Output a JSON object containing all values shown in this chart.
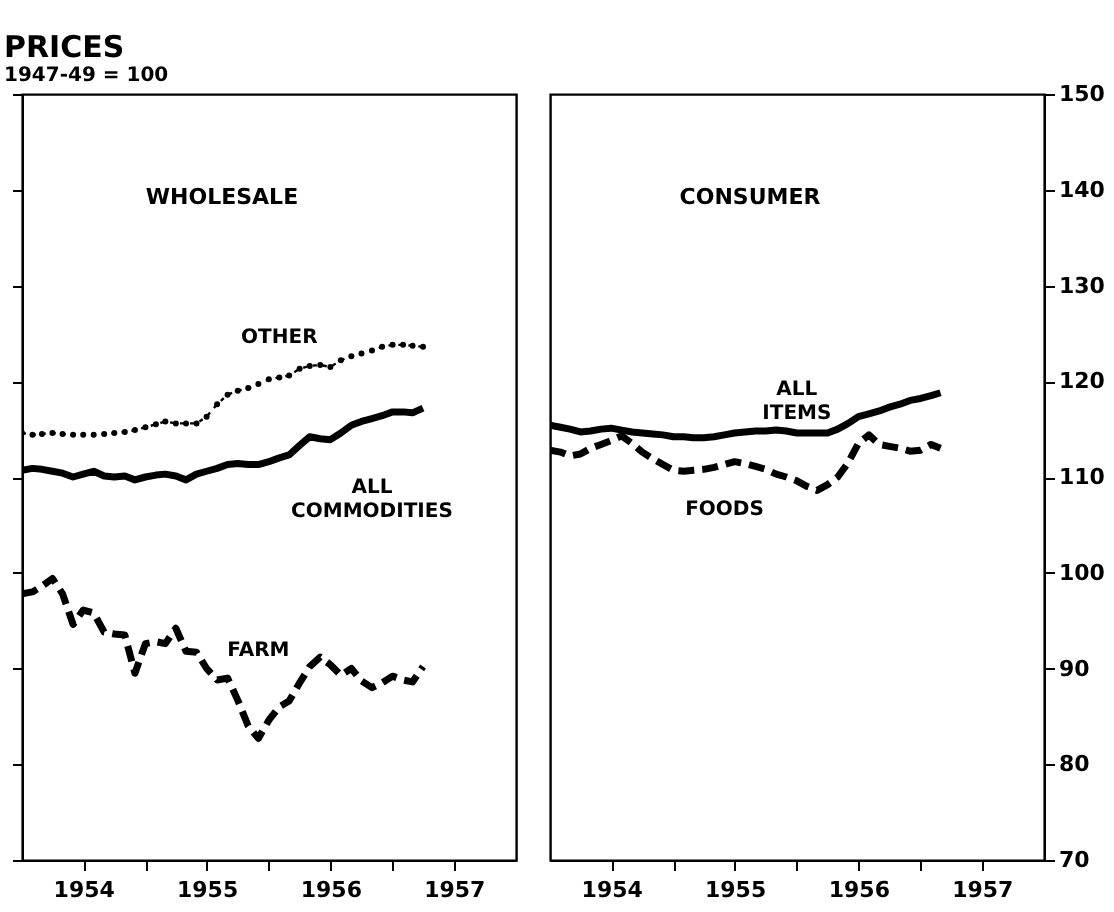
{
  "chart_data": [
    {
      "type": "line",
      "title": "PRICES",
      "subtitle": "1947-49 = 100",
      "annotations": [
        "WHOLESALE"
      ],
      "x": [
        "1954-01",
        "1954-02",
        "1954-03",
        "1954-04",
        "1954-05",
        "1954-06",
        "1954-07",
        "1954-08",
        "1954-09",
        "1954-10",
        "1954-11",
        "1954-12",
        "1955-01",
        "1955-02",
        "1955-03",
        "1955-04",
        "1955-05",
        "1955-06",
        "1955-07",
        "1955-08",
        "1955-09",
        "1955-10",
        "1955-11",
        "1955-12",
        "1956-01",
        "1956-02",
        "1956-03",
        "1956-04",
        "1956-05",
        "1956-06",
        "1956-07",
        "1956-08",
        "1956-09",
        "1956-10",
        "1956-11",
        "1956-12",
        "1957-01",
        "1957-02",
        "1957-03",
        "1957-04"
      ],
      "series": [
        {
          "name": "OTHER",
          "color": "#000000",
          "line_style": "dotted",
          "marker": "circle",
          "values": [
            114.6,
            114.4,
            114.5,
            114.6,
            114.5,
            114.4,
            114.4,
            114.4,
            114.5,
            114.6,
            114.7,
            114.9,
            115.2,
            115.5,
            115.8,
            115.6,
            115.6,
            115.6,
            116.3,
            117.6,
            118.6,
            119.0,
            119.3,
            119.7,
            120.2,
            120.4,
            120.6,
            121.3,
            121.6,
            121.7,
            121.5,
            122.2,
            122.6,
            122.9,
            123.2,
            123.6,
            123.8,
            123.8,
            123.7,
            123.6
          ]
        },
        {
          "name": "ALL COMMODITIES",
          "color": "#000000",
          "line_style": "solid",
          "values": [
            110.7,
            110.9,
            110.8,
            110.6,
            110.4,
            110.0,
            110.3,
            110.6,
            110.1,
            110.0,
            110.1,
            109.7,
            110.0,
            110.2,
            110.3,
            110.1,
            109.7,
            110.3,
            110.6,
            110.9,
            111.3,
            111.4,
            111.3,
            111.3,
            111.6,
            112.0,
            112.3,
            113.3,
            114.2,
            114.0,
            113.9,
            114.6,
            115.4,
            115.8,
            116.1,
            116.4,
            116.8,
            116.8,
            116.7,
            117.2
          ]
        },
        {
          "name": "FARM",
          "color": "#000000",
          "line_style": "dashed",
          "values": [
            97.8,
            98.0,
            98.6,
            99.4,
            97.8,
            94.6,
            96.1,
            95.8,
            93.8,
            93.6,
            93.5,
            89.5,
            92.6,
            92.8,
            92.6,
            94.2,
            91.8,
            91.7,
            90.0,
            88.8,
            89.0,
            86.7,
            84.0,
            82.7,
            84.6,
            86.0,
            86.6,
            88.5,
            90.2,
            91.2,
            90.4,
            89.3,
            90.0,
            88.7,
            88.0,
            88.5,
            89.2,
            88.8,
            88.6,
            90.2
          ]
        }
      ],
      "xlim": [
        "1954-01",
        "1958-01"
      ],
      "xticks": [
        {
          "value": "1954-07",
          "label": "1954"
        },
        {
          "value": "1955-01",
          "label": null
        },
        {
          "value": "1955-07",
          "label": "1955"
        },
        {
          "value": "1956-01",
          "label": null
        },
        {
          "value": "1956-07",
          "label": "1956"
        },
        {
          "value": "1957-01",
          "label": null
        },
        {
          "value": "1957-07",
          "label": "1957"
        }
      ],
      "ylim": [
        70,
        150
      ],
      "yticks": [
        70,
        80,
        90,
        100,
        110,
        120,
        130,
        140,
        150
      ],
      "tick_labels": "x",
      "grid": false
    },
    {
      "type": "line",
      "annotations": [
        "CONSUMER"
      ],
      "x": [
        "1954-01",
        "1954-02",
        "1954-03",
        "1954-04",
        "1954-05",
        "1954-06",
        "1954-07",
        "1954-08",
        "1954-09",
        "1954-10",
        "1954-11",
        "1954-12",
        "1955-01",
        "1955-02",
        "1955-03",
        "1955-04",
        "1955-05",
        "1955-06",
        "1955-07",
        "1955-08",
        "1955-09",
        "1955-10",
        "1955-11",
        "1955-12",
        "1956-01",
        "1956-02",
        "1956-03",
        "1956-04",
        "1956-05",
        "1956-06",
        "1956-07",
        "1956-08",
        "1956-09",
        "1956-10",
        "1956-11",
        "1956-12",
        "1957-01",
        "1957-02",
        "1957-03"
      ],
      "series": [
        {
          "name": "ALL ITEMS",
          "color": "#000000",
          "line_style": "solid",
          "values": [
            115.4,
            115.2,
            115.0,
            114.7,
            114.8,
            115.0,
            115.1,
            114.9,
            114.7,
            114.6,
            114.5,
            114.4,
            114.2,
            114.2,
            114.1,
            114.1,
            114.2,
            114.4,
            114.6,
            114.7,
            114.8,
            114.8,
            114.9,
            114.8,
            114.6,
            114.6,
            114.6,
            114.6,
            115.0,
            115.6,
            116.3,
            116.6,
            116.9,
            117.3,
            117.6,
            118.0,
            118.2,
            118.5,
            118.8
          ]
        },
        {
          "name": "FOODS",
          "color": "#000000",
          "line_style": "dashed",
          "values": [
            112.8,
            112.6,
            112.2,
            112.4,
            113.0,
            113.4,
            113.8,
            114.3,
            113.5,
            112.6,
            111.9,
            111.3,
            110.7,
            110.6,
            110.7,
            110.8,
            111.0,
            111.3,
            111.6,
            111.4,
            111.1,
            110.8,
            110.3,
            110.0,
            109.6,
            109.0,
            108.6,
            109.2,
            110.0,
            111.5,
            113.5,
            114.4,
            113.4,
            113.2,
            113.0,
            112.7,
            112.8,
            113.4,
            113.0
          ]
        }
      ],
      "xlim": [
        "1954-01",
        "1958-01"
      ],
      "xticks": [
        {
          "value": "1954-07",
          "label": "1954"
        },
        {
          "value": "1955-01",
          "label": null
        },
        {
          "value": "1955-07",
          "label": "1955"
        },
        {
          "value": "1956-01",
          "label": null
        },
        {
          "value": "1956-07",
          "label": "1956"
        },
        {
          "value": "1957-01",
          "label": null
        },
        {
          "value": "1957-07",
          "label": "1957"
        }
      ],
      "ylim": [
        70,
        150
      ],
      "yticks": [
        70,
        80,
        90,
        100,
        110,
        120,
        130,
        140,
        150
      ],
      "grid": false
    }
  ]
}
